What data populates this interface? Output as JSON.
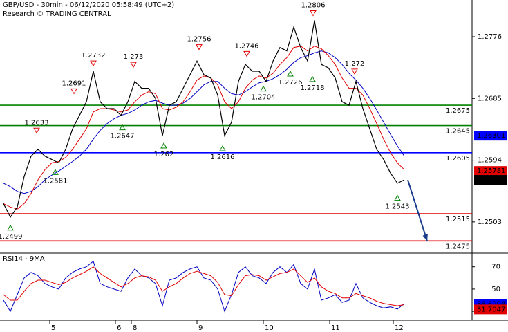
{
  "chart_data": {
    "type": "line",
    "title": "GBP/USD - 30min - 06/12/2020 05:58:49 (UTC+2)",
    "subtitle": "Research © TRADING CENTRAL",
    "xlim": [
      -0.5,
      67.8
    ],
    "ylim": [
      1.2457,
      1.283
    ],
    "yticks": [
      1.2503,
      1.2594,
      1.2685,
      1.2776
    ],
    "xticks": [
      {
        "value": 6.7,
        "label": "5"
      },
      {
        "value": 16.2,
        "label": "6"
      },
      {
        "value": 18.5,
        "label": "8"
      },
      {
        "value": 28,
        "label": "9"
      },
      {
        "value": 37.6,
        "label": "10"
      },
      {
        "value": 47.2,
        "label": "11"
      },
      {
        "value": 56.4,
        "label": "12"
      }
    ],
    "x": [
      0,
      1,
      2,
      3,
      4,
      5,
      6,
      7,
      8,
      9,
      10,
      11,
      12,
      13,
      14,
      15,
      16,
      17,
      18,
      19,
      20,
      21,
      22,
      23,
      24,
      25,
      26,
      27,
      28,
      29,
      30,
      31,
      32,
      33,
      34,
      35,
      36,
      37,
      38,
      39,
      40,
      41,
      42,
      43,
      44,
      45,
      46,
      47,
      48,
      49,
      50,
      51,
      52,
      53,
      54,
      55,
      56,
      57,
      58
    ],
    "series": [
      {
        "color": "#000000",
        "values": [
          1.253,
          1.251,
          1.2525,
          1.257,
          1.26,
          1.261,
          1.26,
          1.2595,
          1.259,
          1.261,
          1.264,
          1.266,
          1.268,
          1.2725,
          1.268,
          1.267,
          1.267,
          1.266,
          1.268,
          1.271,
          1.27,
          1.27,
          1.2685,
          1.263,
          1.2675,
          1.268,
          1.27,
          1.272,
          1.274,
          1.272,
          1.2715,
          1.269,
          1.263,
          1.265,
          1.271,
          1.2735,
          1.2725,
          1.2725,
          1.271,
          1.274,
          1.276,
          1.2755,
          1.279,
          1.276,
          1.274,
          1.28,
          1.2735,
          1.273,
          1.2715,
          1.268,
          1.2675,
          1.271,
          1.267,
          1.264,
          1.261,
          1.2595,
          1.2575,
          1.256,
          1.2565
        ]
      },
      {
        "color": "#e00000",
        "values": [
          1.253,
          1.2525,
          1.2522,
          1.253,
          1.2545,
          1.2565,
          1.258,
          1.259,
          1.2592,
          1.2598,
          1.261,
          1.2625,
          1.264,
          1.2665,
          1.267,
          1.267,
          1.2668,
          1.2665,
          1.2668,
          1.268,
          1.269,
          1.2695,
          1.2692,
          1.267,
          1.2668,
          1.2672,
          1.268,
          1.2695,
          1.2712,
          1.2718,
          1.2715,
          1.2705,
          1.268,
          1.267,
          1.268,
          1.27,
          1.2712,
          1.2718,
          1.2715,
          1.2722,
          1.2735,
          1.2745,
          1.276,
          1.2762,
          1.2755,
          1.2762,
          1.2758,
          1.2748,
          1.2735,
          1.2715,
          1.27,
          1.27,
          1.269,
          1.267,
          1.2648,
          1.2625,
          1.2605,
          1.259,
          1.258
        ]
      },
      {
        "color": "#0000c0",
        "values": [
          1.256,
          1.2555,
          1.2548,
          1.2545,
          1.2548,
          1.2555,
          1.2565,
          1.2572,
          1.2578,
          1.2585,
          1.2592,
          1.26,
          1.261,
          1.2625,
          1.2638,
          1.2648,
          1.2655,
          1.266,
          1.2663,
          1.2668,
          1.2675,
          1.268,
          1.2682,
          1.2678,
          1.2675,
          1.2675,
          1.2678,
          1.2685,
          1.2695,
          1.2705,
          1.271,
          1.271,
          1.27,
          1.2692,
          1.269,
          1.2695,
          1.2702,
          1.2708,
          1.271,
          1.2714,
          1.272,
          1.2728,
          1.2738,
          1.2745,
          1.2748,
          1.2752,
          1.2755,
          1.2752,
          1.2745,
          1.2735,
          1.2722,
          1.2712,
          1.27,
          1.2685,
          1.2668,
          1.265,
          1.2632,
          1.2615,
          1.26
        ]
      }
    ],
    "levels": [
      {
        "value": 1.2675,
        "color": "#008000"
      },
      {
        "value": 1.2645,
        "color": "#008000"
      },
      {
        "value": 1.2605,
        "color": "#0000ff"
      },
      {
        "value": 1.2515,
        "color": "#e00000"
      },
      {
        "value": 1.2475,
        "color": "#e00000"
      }
    ],
    "highs": {
      "x": [
        4.8,
        10.2,
        13,
        18.8,
        28.3,
        35.2,
        44.8,
        50.8
      ],
      "values": [
        1.2633,
        1.2691,
        1.2732,
        1.273,
        1.2756,
        1.2746,
        1.2806,
        1.272
      ]
    },
    "lows": {
      "x": [
        1,
        7.5,
        17.2,
        23.2,
        31.7,
        37.6,
        41.5,
        44.7,
        57
      ],
      "values": [
        1.2499,
        1.2581,
        1.2647,
        1.262,
        1.2616,
        1.2704,
        1.2726,
        1.2718,
        1.2543
      ]
    },
    "forecast": {
      "x": [
        58.5,
        61.3
      ],
      "values": [
        1.2565,
        1.2475
      ]
    },
    "price_tags": [
      {
        "value": 1.26301,
        "color": "#0000ff"
      },
      {
        "value": 1.25781,
        "color": "#e00000"
      },
      {
        "value": 1.2565,
        "color": "#000000"
      }
    ],
    "rsi": {
      "title": "RSI14 - 9MA",
      "ylim": [
        22,
        81
      ],
      "yticks": [
        30,
        50,
        70
      ],
      "series": [
        {
          "color": "#0000c0",
          "values": [
            40,
            30,
            45,
            60,
            65,
            62,
            55,
            52,
            50,
            60,
            65,
            68,
            70,
            75,
            55,
            52,
            50,
            48,
            60,
            68,
            62,
            60,
            55,
            35,
            58,
            60,
            65,
            68,
            70,
            60,
            58,
            50,
            30,
            45,
            65,
            70,
            62,
            60,
            55,
            65,
            70,
            65,
            72,
            55,
            50,
            68,
            40,
            42,
            45,
            38,
            40,
            55,
            42,
            38,
            35,
            33,
            34,
            32,
            37
          ]
        },
        {
          "color": "#e00000",
          "values": [
            45,
            40,
            40,
            48,
            55,
            58,
            58,
            56,
            54,
            56,
            60,
            63,
            66,
            70,
            64,
            60,
            56,
            52,
            55,
            60,
            62,
            61,
            58,
            48,
            52,
            55,
            60,
            64,
            66,
            64,
            62,
            56,
            45,
            44,
            54,
            62,
            63,
            62,
            58,
            61,
            64,
            65,
            68,
            62,
            56,
            60,
            52,
            48,
            46,
            42,
            42,
            46,
            44,
            42,
            39,
            37,
            36,
            35,
            36
          ]
        }
      ],
      "price_tags": [
        {
          "value": 36.6904,
          "color": "#0000ff"
        },
        {
          "value": 31.7047,
          "color": "#e00000"
        }
      ]
    }
  }
}
